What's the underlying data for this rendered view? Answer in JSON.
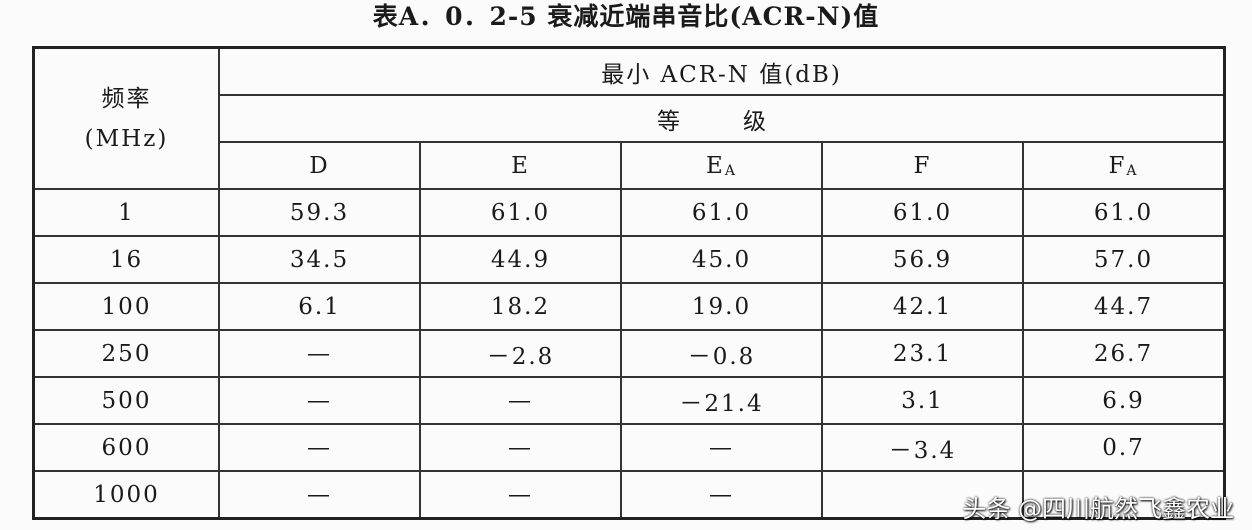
{
  "title": "表A．0．2-5 衰减近端串音比(ACR-N)值",
  "header": {
    "freq_label": "频率",
    "freq_unit": "(MHz)",
    "group": "最小 ACR-N 值(dB)",
    "grade": "等　级",
    "columns": [
      {
        "main": "D",
        "sub": ""
      },
      {
        "main": "E",
        "sub": ""
      },
      {
        "main": "E",
        "sub": "A"
      },
      {
        "main": "F",
        "sub": ""
      },
      {
        "main": "F",
        "sub": "A"
      }
    ]
  },
  "rows": [
    {
      "freq": "1",
      "values": [
        "59.3",
        "61.0",
        "61.0",
        "61.0",
        "61.0"
      ]
    },
    {
      "freq": "16",
      "values": [
        "34.5",
        "44.9",
        "45.0",
        "56.9",
        "57.0"
      ]
    },
    {
      "freq": "100",
      "values": [
        "6.1",
        "18.2",
        "19.0",
        "42.1",
        "44.7"
      ]
    },
    {
      "freq": "250",
      "values": [
        "—",
        "－2.8",
        "－0.8",
        "23.1",
        "26.7"
      ]
    },
    {
      "freq": "500",
      "values": [
        "—",
        "—",
        "－21.4",
        "3.1",
        "6.9"
      ]
    },
    {
      "freq": "600",
      "values": [
        "—",
        "—",
        "—",
        "－3.4",
        "0.7"
      ]
    },
    {
      "freq": "1000",
      "values": [
        "—",
        "—",
        "—",
        "",
        ""
      ]
    }
  ],
  "watermark": "头条 @四川航然飞鑫农业"
}
